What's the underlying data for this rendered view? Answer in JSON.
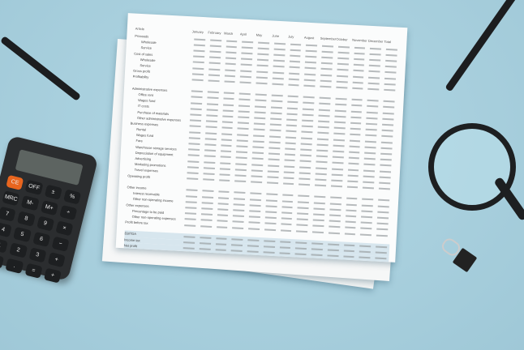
{
  "scene": {
    "background_color": "#a8d0de"
  },
  "spreadsheet": {
    "header": [
      "Article",
      "January",
      "February",
      "March",
      "April",
      "May",
      "June",
      "July",
      "August",
      "September",
      "October",
      "November",
      "December",
      "Total"
    ],
    "rows": [
      {
        "label": "Proceeds",
        "sub": false
      },
      {
        "label": "Wholesale",
        "sub": true
      },
      {
        "label": "Service",
        "sub": true
      },
      {
        "label": "Cost of sales",
        "sub": false
      },
      {
        "label": "Wholesale",
        "sub": true
      },
      {
        "label": "Service",
        "sub": true
      },
      {
        "label": "Gross profit",
        "sub": false
      },
      {
        "label": "Profitability",
        "sub": false
      },
      {
        "label": "",
        "sub": false
      },
      {
        "label": "Administrative expenses",
        "sub": false
      },
      {
        "label": "Office rent",
        "sub": true
      },
      {
        "label": "Wages fund",
        "sub": true
      },
      {
        "label": "IT costs",
        "sub": true
      },
      {
        "label": "Purchase of materials",
        "sub": true
      },
      {
        "label": "Other administrative expenses",
        "sub": true
      },
      {
        "label": "Business expenses",
        "sub": false
      },
      {
        "label": "Rental",
        "sub": true
      },
      {
        "label": "Wages fund",
        "sub": true
      },
      {
        "label": "Fare",
        "sub": true
      },
      {
        "label": "Warehouse storage services",
        "sub": true
      },
      {
        "label": "Depreciation of equipment",
        "sub": true
      },
      {
        "label": "Advertising",
        "sub": true
      },
      {
        "label": "Marketing promotions",
        "sub": true
      },
      {
        "label": "Travel expenses",
        "sub": true
      },
      {
        "label": "Operating profit",
        "sub": false
      },
      {
        "label": "",
        "sub": false
      },
      {
        "label": "Other income",
        "sub": false
      },
      {
        "label": "Interest receivable",
        "sub": true
      },
      {
        "label": "Other non-operating income",
        "sub": true
      },
      {
        "label": "Other expenses",
        "sub": false
      },
      {
        "label": "Percentage to be paid",
        "sub": true
      },
      {
        "label": "Other non-operating expenses",
        "sub": true
      },
      {
        "label": "Profit before tax",
        "sub": false
      },
      {
        "label": "",
        "sub": false
      },
      {
        "label": "EBITDA",
        "sub": false,
        "band": true
      },
      {
        "label": "Income tax",
        "sub": false,
        "band": true
      },
      {
        "label": "Net profit",
        "sub": false,
        "band": true
      }
    ]
  },
  "calculator": {
    "keys": [
      "CE",
      "OFF",
      "±",
      "%",
      "MRC",
      "M-",
      "M+",
      "÷",
      "7",
      "8",
      "9",
      "×",
      "4",
      "5",
      "6",
      "−",
      "1",
      "2",
      "3",
      "+",
      "0",
      ".",
      "=",
      "+"
    ],
    "accent_color": "#e8651e"
  }
}
